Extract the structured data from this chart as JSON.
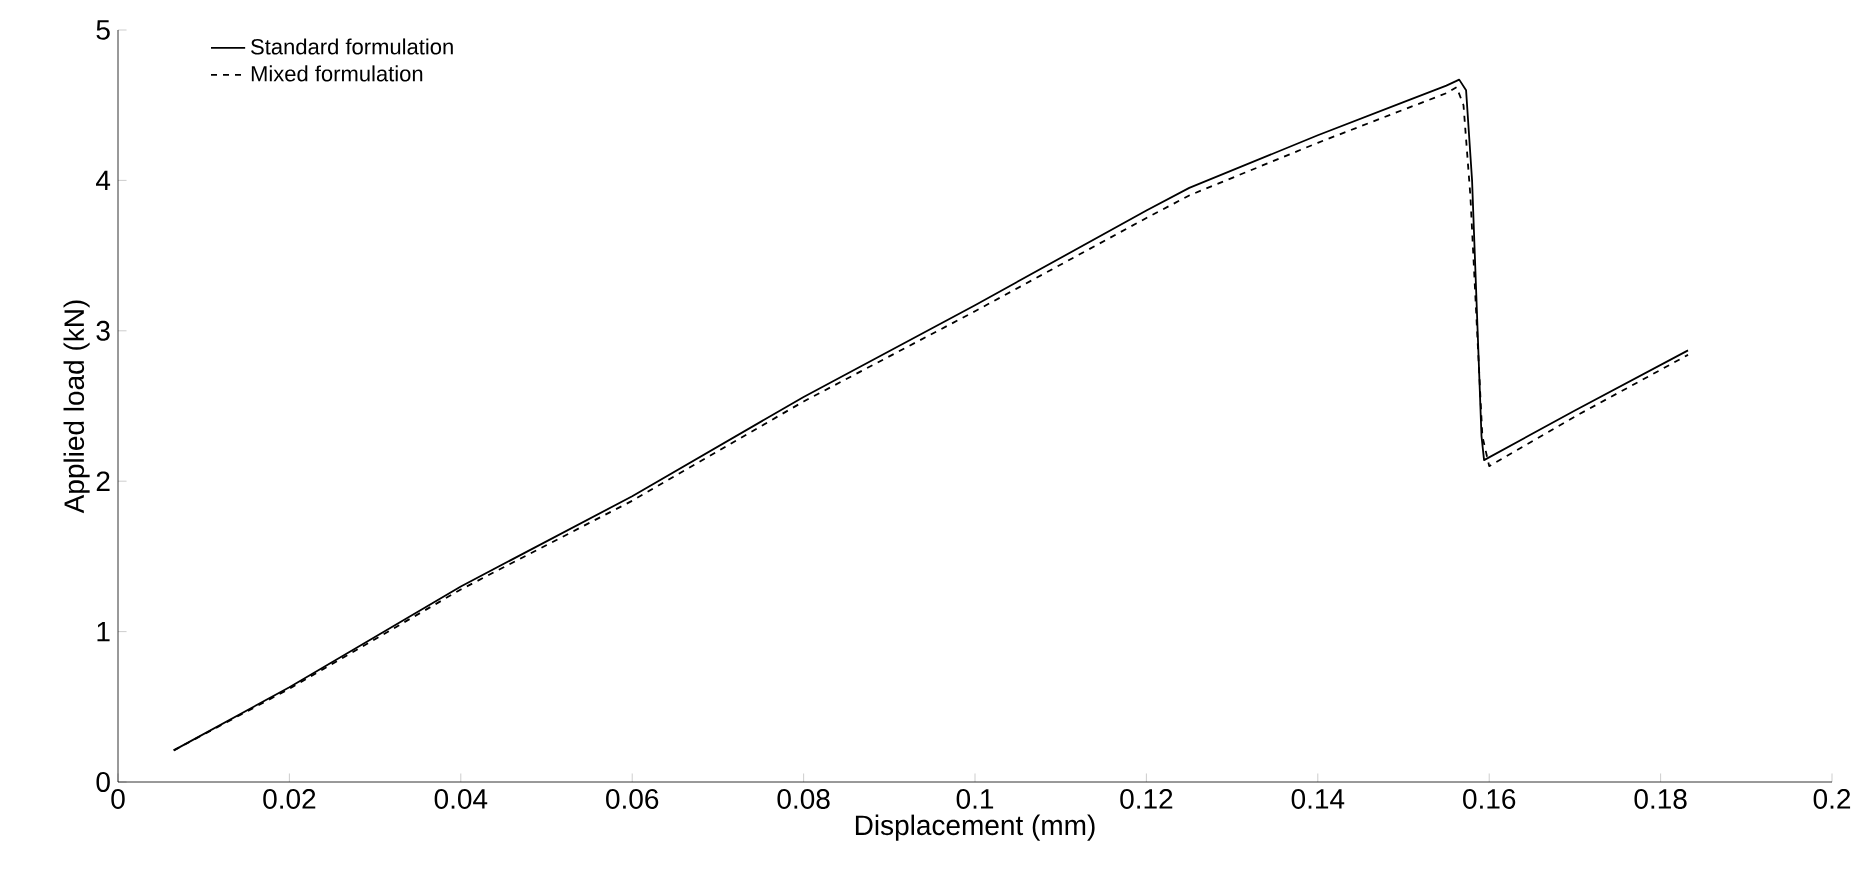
{
  "chart_data": {
    "type": "line",
    "xlabel": "Displacement (mm)",
    "ylabel": "Applied load (kN)",
    "xlim": [
      0,
      0.2
    ],
    "ylim": [
      0,
      5
    ],
    "xticks": [
      0,
      0.02,
      0.04,
      0.06,
      0.08,
      0.1,
      0.12,
      0.14,
      0.16,
      0.18,
      0.2
    ],
    "yticks": [
      0,
      1,
      2,
      3,
      4,
      5
    ],
    "legend": "top left",
    "grid": false,
    "series": [
      {
        "name": "Standard formulation",
        "color": "#000000",
        "line_style": "solid",
        "x": [
          0.0065,
          0.02,
          0.04,
          0.06,
          0.08,
          0.1,
          0.12,
          0.125,
          0.14,
          0.15,
          0.155,
          0.1565,
          0.1573,
          0.158,
          0.1591,
          0.1594,
          0.17,
          0.1832
        ],
        "values": [
          0.21,
          0.63,
          1.3,
          1.9,
          2.56,
          3.17,
          3.8,
          3.95,
          4.3,
          4.52,
          4.63,
          4.67,
          4.6,
          4.0,
          2.3,
          2.14,
          2.47,
          2.87
        ]
      },
      {
        "name": "Mixed formulation",
        "color": "#000000",
        "line_style": "dashed",
        "x": [
          0.0065,
          0.02,
          0.04,
          0.06,
          0.08,
          0.1,
          0.12,
          0.125,
          0.14,
          0.15,
          0.155,
          0.1562,
          0.157,
          0.1578,
          0.1592,
          0.16,
          0.17,
          0.1832
        ],
        "values": [
          0.21,
          0.62,
          1.28,
          1.87,
          2.53,
          3.13,
          3.75,
          3.9,
          4.25,
          4.47,
          4.58,
          4.62,
          4.5,
          3.9,
          2.3,
          2.1,
          2.43,
          2.84
        ]
      }
    ]
  }
}
